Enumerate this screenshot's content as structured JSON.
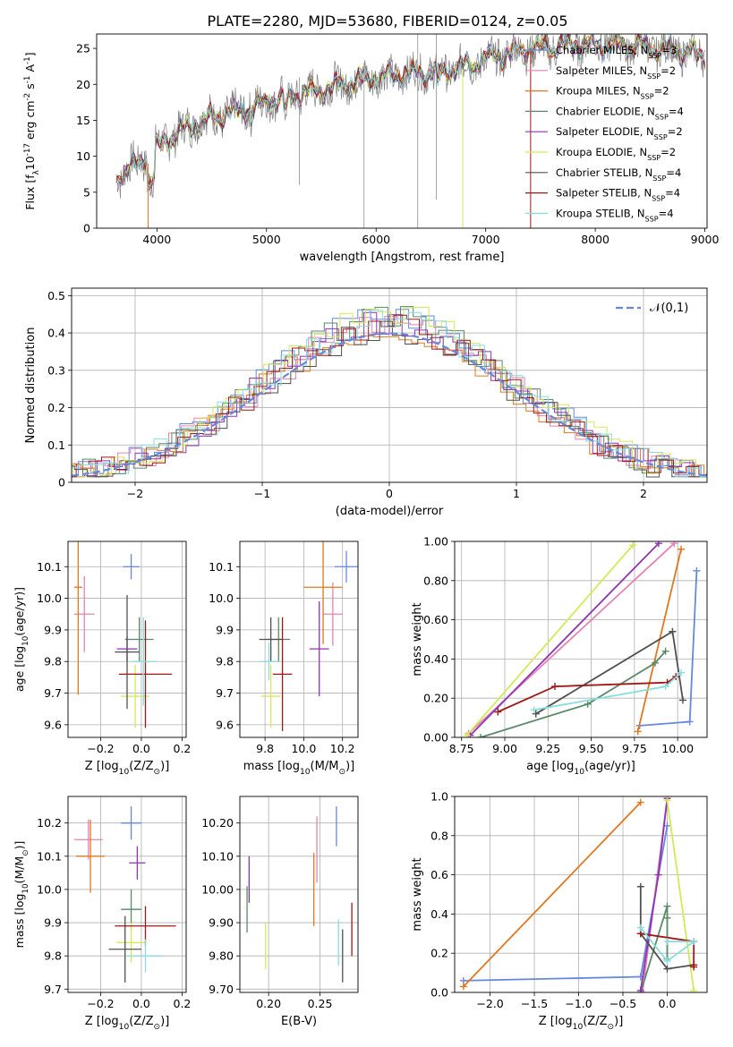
{
  "figure": {
    "title": "PLATE=2280, MJD=53680, FIBERID=0124, z=0.05"
  },
  "models": [
    {
      "label": "Chabrier MILES, N$_{SSP}$=3",
      "color": "#6688dd"
    },
    {
      "label": "Salpeter MILES, N$_{SSP}$=2",
      "color": "#e583b3"
    },
    {
      "label": "Kroupa MILES, N$_{SSP}$=2",
      "color": "#e07820"
    },
    {
      "label": "Chabrier ELODIE, N$_{SSP}$=4",
      "color": "#5a8a68"
    },
    {
      "label": "Salpeter ELODIE, N$_{SSP}$=2",
      "color": "#8e35b0"
    },
    {
      "label": "Kroupa ELODIE, N$_{SSP}$=2",
      "color": "#d6e85a"
    },
    {
      "label": "Chabrier STELIB, N$_{SSP}$=4",
      "color": "#505050"
    },
    {
      "label": "Salpeter STELIB, N$_{SSP}$=4",
      "color": "#a01818"
    },
    {
      "label": "Kroupa STELIB, N$_{SSP}$=4",
      "color": "#88dddd"
    }
  ],
  "chart_data": [
    {
      "id": "spectrum",
      "type": "line",
      "xlabel": "wavelength [Angstrom, rest frame]",
      "ylabel": "Flux [f$_\\lambda$10$^{-17}$ erg cm$^{-2}$ s$^{-1}$ A$^{-1}$]",
      "xlim": [
        3450,
        9020
      ],
      "ylim": [
        0,
        27
      ],
      "xticks": [
        4000,
        5000,
        6000,
        7000,
        8000,
        9000
      ],
      "yticks": [
        0,
        5,
        10,
        15,
        20,
        25
      ],
      "grid": false,
      "legend": "upper right",
      "x_range": [
        3630,
        9000
      ],
      "continuum": [
        [
          3630,
          7
        ],
        [
          3900,
          10
        ],
        [
          4100,
          12.5
        ],
        [
          4400,
          15
        ],
        [
          4800,
          16.5
        ],
        [
          5100,
          18
        ],
        [
          5400,
          19
        ],
        [
          5700,
          20
        ],
        [
          6000,
          21
        ],
        [
          6300,
          21.5
        ],
        [
          6700,
          22
        ],
        [
          7000,
          23.5
        ],
        [
          7400,
          25
        ],
        [
          7800,
          25.5
        ],
        [
          8200,
          25.5
        ],
        [
          8600,
          25
        ],
        [
          9000,
          24
        ]
      ]
    },
    {
      "id": "residuals",
      "type": "histogram",
      "xlabel": "(data-model)/error",
      "ylabel": "Normed distribution",
      "xlim": [
        -2.5,
        2.5
      ],
      "ylim": [
        0,
        0.52
      ],
      "xticks": [
        -2,
        -1,
        0,
        1,
        2
      ],
      "yticks": [
        0,
        0.1,
        0.2,
        0.3,
        0.4,
        0.5
      ],
      "grid": true,
      "bin_width": 0.1,
      "reference_label": "$\\mathcal{N}(0,1)$",
      "reference_color": "#6688dd",
      "peak_heights": [
        0.49,
        0.46,
        0.45,
        0.48,
        0.47,
        0.5,
        0.44,
        0.46,
        0.47
      ]
    },
    {
      "id": "age_vs_Z",
      "type": "errorbar",
      "xlabel": "Z [log$_{10}$(Z/Z$_\\odot$)]",
      "ylabel": "age  [log$_{10}$(age/yr)]",
      "xlim": [
        -0.36,
        0.22
      ],
      "ylim": [
        9.56,
        10.18
      ],
      "xticks": [
        -0.2,
        0.0,
        0.2
      ],
      "yticks": [
        9.6,
        9.7,
        9.8,
        9.9,
        10.0,
        10.1
      ],
      "grid": true,
      "points": [
        {
          "x": -0.05,
          "xerr": 0.04,
          "y": 10.1,
          "yerr": 0.04
        },
        {
          "x": -0.28,
          "xerr": 0.05,
          "y": 9.95,
          "yerr": 0.12
        },
        {
          "x": -0.31,
          "xerr": 0.02,
          "y": 10.035,
          "yerr": 0.34
        },
        {
          "x": -0.01,
          "xerr": 0.07,
          "y": 9.87,
          "yerr": 0.07
        },
        {
          "x": -0.07,
          "xerr": 0.05,
          "y": 9.84,
          "yerr": 0.04
        },
        {
          "x": -0.03,
          "xerr": 0.07,
          "y": 9.69,
          "yerr": 0.1
        },
        {
          "x": -0.07,
          "xerr": 0.06,
          "y": 9.83,
          "yerr": 0.18
        },
        {
          "x": 0.02,
          "xerr": 0.13,
          "y": 9.76,
          "yerr": 0.17
        },
        {
          "x": 0.01,
          "xerr": 0.06,
          "y": 9.8,
          "yerr": 0.14
        }
      ]
    },
    {
      "id": "age_vs_mass",
      "type": "errorbar",
      "xlabel": "mass [log$_{10}$(M/M$_\\odot$)]",
      "ylabel": "",
      "xlim": [
        9.67,
        10.28
      ],
      "ylim": [
        9.56,
        10.18
      ],
      "xticks": [
        9.8,
        10.0,
        10.2
      ],
      "yticks": [
        9.6,
        9.7,
        9.8,
        9.9,
        10.0,
        10.1
      ],
      "grid": true,
      "points": [
        {
          "x": 10.22,
          "xerr": 0.06,
          "y": 10.1,
          "yerr": 0.05
        },
        {
          "x": 10.15,
          "xerr": 0.05,
          "y": 9.95,
          "yerr": 0.1
        },
        {
          "x": 10.1,
          "xerr": 0.1,
          "y": 10.035,
          "yerr": 0.18
        },
        {
          "x": 9.87,
          "xerr": 0.06,
          "y": 9.87,
          "yerr": 0.07
        },
        {
          "x": 10.08,
          "xerr": 0.05,
          "y": 9.84,
          "yerr": 0.15
        },
        {
          "x": 9.83,
          "xerr": 0.05,
          "y": 9.69,
          "yerr": 0.1
        },
        {
          "x": 9.83,
          "xerr": 0.06,
          "y": 9.87,
          "yerr": 0.07
        },
        {
          "x": 9.89,
          "xerr": 0.05,
          "y": 9.76,
          "yerr": 0.18
        },
        {
          "x": 9.82,
          "xerr": 0.05,
          "y": 9.8,
          "yerr": 0.06
        }
      ]
    },
    {
      "id": "weight_vs_age",
      "type": "line",
      "xlabel": "age  [log$_{10}$(age/yr)]",
      "ylabel": "mass weight",
      "xlim": [
        8.71,
        10.17
      ],
      "ylim": [
        0,
        1
      ],
      "xticks": [
        8.75,
        9.0,
        9.25,
        9.5,
        9.75,
        10.0
      ],
      "yticks": [
        0,
        0.2,
        0.4,
        0.6,
        0.8,
        1.0
      ],
      "grid": true,
      "series": [
        {
          "x": [
            9.78,
            10.07,
            10.11
          ],
          "y": [
            0.06,
            0.08,
            0.85
          ]
        },
        {
          "x": [
            8.79,
            9.98
          ],
          "y": [
            0.02,
            0.99
          ]
        },
        {
          "x": [
            9.77,
            10.02
          ],
          "y": [
            0.03,
            0.96
          ]
        },
        {
          "x": [
            8.86,
            9.48,
            9.87,
            9.93
          ],
          "y": [
            0.0,
            0.17,
            0.38,
            0.44
          ]
        },
        {
          "x": [
            8.8,
            9.89
          ],
          "y": [
            0.01,
            0.99
          ]
        },
        {
          "x": [
            8.78,
            9.74
          ],
          "y": [
            0.01,
            0.98
          ]
        },
        {
          "x": [
            9.18,
            9.97,
            10.03
          ],
          "y": [
            0.12,
            0.54,
            0.19
          ]
        },
        {
          "x": [
            8.96,
            9.29,
            9.94,
            9.99
          ],
          "y": [
            0.13,
            0.26,
            0.28,
            0.31
          ]
        },
        {
          "x": [
            9.17,
            9.93,
            10.02
          ],
          "y": [
            0.14,
            0.26,
            0.33
          ]
        }
      ]
    },
    {
      "id": "mass_vs_Z",
      "type": "errorbar",
      "xlabel": "Z [log$_{10}$(Z/Z$_\\odot$)]",
      "ylabel": "mass [log$_{10}$(M/M$_\\odot$)]",
      "xlim": [
        -0.36,
        0.22
      ],
      "ylim": [
        9.69,
        10.28
      ],
      "xticks": [
        -0.2,
        0.0,
        0.2
      ],
      "yticks": [
        9.7,
        9.8,
        9.9,
        10.0,
        10.1,
        10.2
      ],
      "grid": true,
      "points": [
        {
          "x": -0.05,
          "xerr": 0.05,
          "y": 10.2,
          "yerr": 0.05
        },
        {
          "x": -0.26,
          "xerr": 0.07,
          "y": 10.15,
          "yerr": 0.06
        },
        {
          "x": -0.25,
          "xerr": 0.07,
          "y": 10.1,
          "yerr": 0.11
        },
        {
          "x": -0.05,
          "xerr": 0.05,
          "y": 9.94,
          "yerr": 0.06
        },
        {
          "x": -0.02,
          "xerr": 0.04,
          "y": 10.08,
          "yerr": 0.05
        },
        {
          "x": -0.05,
          "xerr": 0.07,
          "y": 9.84,
          "yerr": 0.06
        },
        {
          "x": -0.08,
          "xerr": 0.08,
          "y": 9.82,
          "yerr": 0.1
        },
        {
          "x": 0.02,
          "xerr": 0.15,
          "y": 9.89,
          "yerr": 0.06
        },
        {
          "x": 0.02,
          "xerr": 0.09,
          "y": 9.8,
          "yerr": 0.05
        }
      ]
    },
    {
      "id": "mass_vs_ebv",
      "type": "errorbar",
      "xlabel": "E(B-V)",
      "ylabel": "",
      "xlim": [
        0.172,
        0.287
      ],
      "ylim": [
        9.69,
        10.28
      ],
      "xticks": [
        0.2,
        0.25
      ],
      "yticks": [
        9.7,
        9.8,
        9.9,
        10.0,
        10.1,
        10.2
      ],
      "grid": true,
      "points": [
        {
          "x": 0.266,
          "y": 10.19,
          "yerr": 0.06
        },
        {
          "x": 0.247,
          "y": 10.12,
          "yerr": 0.1
        },
        {
          "x": 0.244,
          "y": 10.0,
          "yerr": 0.11
        },
        {
          "x": 0.179,
          "y": 9.94,
          "yerr": 0.07
        },
        {
          "x": 0.181,
          "y": 10.03,
          "yerr": 0.07
        },
        {
          "x": 0.197,
          "y": 9.83,
          "yerr": 0.07
        },
        {
          "x": 0.272,
          "y": 9.8,
          "yerr": 0.08
        },
        {
          "x": 0.281,
          "y": 9.88,
          "yerr": 0.08
        },
        {
          "x": 0.268,
          "y": 9.84,
          "yerr": 0.07
        }
      ]
    },
    {
      "id": "weight_vs_Z",
      "type": "line",
      "xlabel": "Z [log$_{10}$(Z/Z$_\\odot$)]",
      "ylabel": "mass weight",
      "xlim": [
        -2.4,
        0.45
      ],
      "ylim": [
        0,
        1
      ],
      "xticks": [
        -2.0,
        -1.5,
        -1.0,
        -0.5,
        0.0
      ],
      "yticks": [
        0,
        0.2,
        0.4,
        0.6,
        0.8,
        1.0
      ],
      "grid": true,
      "series": [
        {
          "x": [
            -2.3,
            -0.3,
            0.0
          ],
          "y": [
            0.06,
            0.08,
            0.85
          ]
        },
        {
          "x": [
            -0.28,
            0.0
          ],
          "y": [
            0.0,
            0.99
          ]
        },
        {
          "x": [
            -2.3,
            -0.3
          ],
          "y": [
            0.03,
            0.97
          ]
        },
        {
          "x": [
            -0.3,
            0.0,
            0.0,
            0.0
          ],
          "y": [
            0.0,
            0.44,
            0.38,
            0.17
          ]
        },
        {
          "x": [
            -0.3,
            -0.1,
            0.0
          ],
          "y": [
            0.01,
            0.6,
            0.99
          ]
        },
        {
          "x": [
            0.0,
            0.3
          ],
          "y": [
            0.98,
            0.01
          ]
        },
        {
          "x": [
            -0.3,
            -0.3,
            0.0,
            0.3
          ],
          "y": [
            0.54,
            0.3,
            0.12,
            0.14
          ]
        },
        {
          "x": [
            -0.3,
            0.3,
            0.3,
            0.3
          ],
          "y": [
            0.3,
            0.26,
            0.13,
            0.14
          ]
        },
        {
          "x": [
            -0.3,
            0.0,
            0.3,
            0.0
          ],
          "y": [
            0.33,
            0.16,
            0.26,
            0.26
          ]
        }
      ]
    }
  ]
}
